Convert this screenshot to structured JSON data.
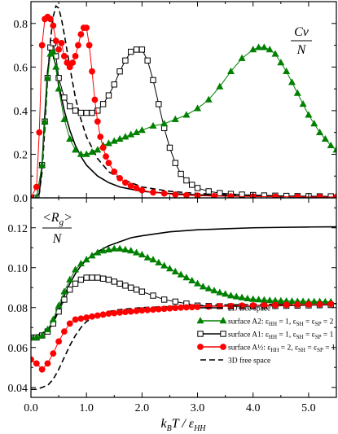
{
  "chart_data": [
    {
      "type": "line",
      "panel": "top",
      "ylabel_num": "Cv",
      "ylabel_den": "N",
      "xlim": [
        0,
        5.5
      ],
      "ylim": [
        0,
        0.9
      ],
      "yticks": [
        0,
        0.2,
        0.4,
        0.6,
        0.8
      ],
      "ytick_labels": [
        "0.0",
        "0.2",
        "0.4",
        "0.6",
        "0.8"
      ],
      "series": [
        {
          "id": "free2d",
          "style": "solid",
          "color": "#000000",
          "x": [
            0,
            0.1,
            0.15,
            0.2,
            0.25,
            0.3,
            0.35,
            0.4,
            0.45,
            0.5,
            0.6,
            0.7,
            0.8,
            0.9,
            1.0,
            1.2,
            1.4,
            1.6,
            1.8,
            2.0,
            2.5,
            3.0,
            3.5,
            4.0,
            4.5,
            5.0,
            5.5
          ],
          "y": [
            0,
            0.0,
            0.02,
            0.15,
            0.38,
            0.58,
            0.67,
            0.66,
            0.6,
            0.52,
            0.4,
            0.31,
            0.24,
            0.19,
            0.15,
            0.1,
            0.07,
            0.05,
            0.04,
            0.03,
            0.02,
            0.014,
            0.01,
            0.008,
            0.006,
            0.005,
            0.004
          ]
        },
        {
          "id": "free3d",
          "style": "dashed",
          "color": "#000000",
          "x": [
            0,
            0.1,
            0.15,
            0.2,
            0.25,
            0.3,
            0.35,
            0.4,
            0.45,
            0.5,
            0.55,
            0.6,
            0.7,
            0.8,
            0.9,
            1.0,
            1.2,
            1.4,
            1.6,
            1.8,
            2.0,
            2.5,
            3.0,
            3.5,
            4.0,
            4.5,
            5.0,
            5.5
          ],
          "y": [
            0,
            0.0,
            0.02,
            0.12,
            0.32,
            0.55,
            0.72,
            0.83,
            0.88,
            0.87,
            0.82,
            0.75,
            0.6,
            0.46,
            0.36,
            0.28,
            0.18,
            0.12,
            0.09,
            0.07,
            0.05,
            0.03,
            0.02,
            0.015,
            0.011,
            0.008,
            0.006,
            0.005
          ]
        },
        {
          "id": "A1",
          "style": "square",
          "color": "#000000",
          "x": [
            0,
            0.1,
            0.2,
            0.25,
            0.3,
            0.35,
            0.4,
            0.45,
            0.5,
            0.6,
            0.7,
            0.8,
            0.9,
            1.0,
            1.1,
            1.2,
            1.3,
            1.4,
            1.5,
            1.6,
            1.7,
            1.8,
            1.9,
            2.0,
            2.1,
            2.2,
            2.3,
            2.4,
            2.5,
            2.6,
            2.7,
            2.8,
            2.9,
            3.0,
            3.2,
            3.4,
            3.6,
            3.8,
            4.0,
            4.2,
            4.4,
            4.6,
            4.8,
            5.0,
            5.2,
            5.4
          ],
          "y": [
            0,
            0.0,
            0.15,
            0.35,
            0.55,
            0.69,
            0.71,
            0.65,
            0.55,
            0.46,
            0.42,
            0.4,
            0.39,
            0.39,
            0.39,
            0.4,
            0.43,
            0.47,
            0.52,
            0.58,
            0.63,
            0.67,
            0.68,
            0.68,
            0.63,
            0.54,
            0.43,
            0.32,
            0.23,
            0.16,
            0.11,
            0.08,
            0.06,
            0.045,
            0.03,
            0.022,
            0.018,
            0.015,
            0.013,
            0.011,
            0.01,
            0.009,
            0.008,
            0.008,
            0.007,
            0.007
          ]
        },
        {
          "id": "A2",
          "style": "triangle",
          "color": "#008000",
          "x": [
            0,
            0.1,
            0.2,
            0.25,
            0.3,
            0.35,
            0.4,
            0.45,
            0.5,
            0.6,
            0.7,
            0.8,
            0.9,
            1.0,
            1.1,
            1.2,
            1.3,
            1.4,
            1.5,
            1.6,
            1.7,
            1.8,
            1.9,
            2.0,
            2.2,
            2.4,
            2.6,
            2.8,
            3.0,
            3.2,
            3.4,
            3.6,
            3.8,
            4.0,
            4.1,
            4.2,
            4.3,
            4.4,
            4.5,
            4.6,
            4.7,
            4.8,
            4.9,
            5.0,
            5.1,
            5.2,
            5.3,
            5.4,
            5.5
          ],
          "y": [
            0,
            0.0,
            0.15,
            0.35,
            0.55,
            0.66,
            0.67,
            0.6,
            0.5,
            0.36,
            0.27,
            0.22,
            0.2,
            0.2,
            0.21,
            0.22,
            0.24,
            0.25,
            0.26,
            0.27,
            0.28,
            0.29,
            0.3,
            0.31,
            0.33,
            0.34,
            0.36,
            0.38,
            0.41,
            0.45,
            0.51,
            0.58,
            0.64,
            0.68,
            0.69,
            0.69,
            0.68,
            0.66,
            0.62,
            0.58,
            0.53,
            0.48,
            0.43,
            0.38,
            0.34,
            0.3,
            0.27,
            0.24,
            0.22
          ]
        },
        {
          "id": "Ahalf",
          "style": "circle",
          "color": "#ff0000",
          "x": [
            0,
            0.1,
            0.15,
            0.2,
            0.25,
            0.3,
            0.35,
            0.4,
            0.45,
            0.5,
            0.55,
            0.6,
            0.65,
            0.7,
            0.75,
            0.8,
            0.85,
            0.9,
            0.95,
            1.0,
            1.05,
            1.1,
            1.15,
            1.2,
            1.25,
            1.3,
            1.35,
            1.4,
            1.5,
            1.6,
            1.7,
            1.8,
            1.9,
            2.0,
            2.2,
            2.4,
            2.6,
            2.8,
            3.0,
            3.3,
            3.6,
            4.0,
            4.4,
            4.8,
            5.2,
            5.5
          ],
          "y": [
            0,
            0.05,
            0.3,
            0.7,
            0.82,
            0.83,
            0.82,
            0.79,
            0.72,
            0.68,
            0.71,
            0.65,
            0.62,
            0.6,
            0.62,
            0.65,
            0.7,
            0.75,
            0.78,
            0.78,
            0.7,
            0.58,
            0.45,
            0.35,
            0.28,
            0.23,
            0.19,
            0.16,
            0.12,
            0.09,
            0.07,
            0.055,
            0.045,
            0.035,
            0.025,
            0.02,
            0.015,
            0.012,
            0.01,
            0.008,
            0.007,
            0.006,
            0.005,
            0.005,
            0.004,
            0.004
          ]
        }
      ]
    },
    {
      "type": "line",
      "panel": "bottom",
      "ylabel_num": "<R",
      "ylabel_sub": "g",
      "ylabel_num_end": ">",
      "ylabel_den": "N",
      "xlabel_parts": [
        "k",
        "B",
        "T / ε",
        "HH"
      ],
      "xlim": [
        0,
        5.5
      ],
      "ylim": [
        0.035,
        0.135
      ],
      "yticks": [
        0.04,
        0.06,
        0.08,
        0.1,
        0.12
      ],
      "ytick_labels": [
        "0.04",
        "0.06",
        "0.08",
        "0.10",
        "0.12"
      ],
      "xticks": [
        0,
        1,
        2,
        3,
        4,
        5
      ],
      "xtick_labels": [
        "0.0",
        "1.0",
        "2.0",
        "3.0",
        "4.0",
        "5.0"
      ],
      "series": [
        {
          "id": "free2d",
          "style": "solid",
          "color": "#000000",
          "x": [
            0,
            0.1,
            0.2,
            0.3,
            0.4,
            0.5,
            0.6,
            0.7,
            0.8,
            0.9,
            1.0,
            1.2,
            1.4,
            1.6,
            1.8,
            2.0,
            2.5,
            3.0,
            3.5,
            4.0,
            4.5,
            5.0,
            5.5
          ],
          "y": [
            0.066,
            0.066,
            0.067,
            0.069,
            0.073,
            0.079,
            0.086,
            0.092,
            0.097,
            0.101,
            0.104,
            0.108,
            0.111,
            0.113,
            0.115,
            0.116,
            0.118,
            0.119,
            0.1195,
            0.12,
            0.1202,
            0.1204,
            0.1205
          ]
        },
        {
          "id": "free3d",
          "style": "dashed",
          "color": "#000000",
          "x": [
            0,
            0.1,
            0.2,
            0.3,
            0.4,
            0.5,
            0.6,
            0.7,
            0.8,
            0.9,
            1.0,
            1.2,
            1.4,
            1.6,
            1.8,
            2.0,
            2.5,
            3.0,
            3.5,
            4.0,
            4.5,
            5.0,
            5.5
          ],
          "y": [
            0.039,
            0.039,
            0.04,
            0.041,
            0.044,
            0.049,
            0.055,
            0.061,
            0.066,
            0.07,
            0.073,
            0.076,
            0.078,
            0.079,
            0.0795,
            0.08,
            0.0805,
            0.081,
            0.0813,
            0.0815,
            0.0817,
            0.0818,
            0.082
          ]
        },
        {
          "id": "A1",
          "style": "square",
          "color": "#000000",
          "x": [
            0,
            0.1,
            0.2,
            0.3,
            0.4,
            0.5,
            0.6,
            0.7,
            0.8,
            0.9,
            1.0,
            1.1,
            1.2,
            1.3,
            1.4,
            1.5,
            1.6,
            1.7,
            1.8,
            1.9,
            2.0,
            2.2,
            2.4,
            2.6,
            2.8,
            3.0,
            3.2,
            3.4,
            3.6,
            3.8,
            4.0,
            4.2,
            4.4,
            4.6,
            4.8,
            5.0,
            5.2,
            5.4
          ],
          "y": [
            0.065,
            0.065,
            0.066,
            0.068,
            0.072,
            0.078,
            0.084,
            0.089,
            0.092,
            0.094,
            0.095,
            0.095,
            0.095,
            0.0945,
            0.094,
            0.093,
            0.092,
            0.091,
            0.09,
            0.089,
            0.088,
            0.086,
            0.084,
            0.083,
            0.082,
            0.081,
            0.0808,
            0.0807,
            0.0806,
            0.0806,
            0.0806,
            0.0807,
            0.0808,
            0.0809,
            0.081,
            0.0811,
            0.0812,
            0.0813
          ]
        },
        {
          "id": "A2",
          "style": "triangle",
          "color": "#008000",
          "x": [
            0,
            0.1,
            0.2,
            0.3,
            0.4,
            0.5,
            0.6,
            0.7,
            0.8,
            0.9,
            1.0,
            1.1,
            1.2,
            1.3,
            1.4,
            1.5,
            1.6,
            1.7,
            1.8,
            1.9,
            2.0,
            2.1,
            2.2,
            2.3,
            2.4,
            2.5,
            2.6,
            2.7,
            2.8,
            2.9,
            3.0,
            3.1,
            3.2,
            3.3,
            3.4,
            3.5,
            3.6,
            3.7,
            3.8,
            3.9,
            4.0,
            4.1,
            4.2,
            4.3,
            4.4,
            4.5,
            4.6,
            4.7,
            4.8,
            4.9,
            5.0,
            5.1,
            5.2,
            5.3,
            5.4
          ],
          "y": [
            0.065,
            0.065,
            0.066,
            0.069,
            0.074,
            0.081,
            0.088,
            0.094,
            0.099,
            0.102,
            0.104,
            0.106,
            0.1075,
            0.1085,
            0.109,
            0.1095,
            0.1095,
            0.109,
            0.1085,
            0.1075,
            0.1065,
            0.105,
            0.104,
            0.1025,
            0.101,
            0.0995,
            0.098,
            0.0965,
            0.095,
            0.0935,
            0.092,
            0.0905,
            0.0895,
            0.0885,
            0.0875,
            0.0868,
            0.086,
            0.0855,
            0.085,
            0.0845,
            0.0842,
            0.084,
            0.0838,
            0.0836,
            0.0835,
            0.0834,
            0.0833,
            0.0832,
            0.0831,
            0.0831,
            0.083,
            0.083,
            0.083,
            0.0829,
            0.0829
          ]
        },
        {
          "id": "Ahalf",
          "style": "circle",
          "color": "#ff0000",
          "x": [
            0,
            0.1,
            0.2,
            0.3,
            0.4,
            0.5,
            0.6,
            0.7,
            0.8,
            0.9,
            1.0,
            1.1,
            1.2,
            1.3,
            1.4,
            1.5,
            1.6,
            1.7,
            1.8,
            1.9,
            2.0,
            2.1,
            2.2,
            2.3,
            2.4,
            2.5,
            2.6,
            2.7,
            2.8,
            2.9,
            3.0,
            3.2,
            3.4,
            3.6,
            3.8,
            4.0,
            4.2,
            4.4,
            4.6,
            4.8,
            5.0,
            5.2,
            5.4
          ],
          "y": [
            0.054,
            0.052,
            0.049,
            0.052,
            0.057,
            0.063,
            0.068,
            0.072,
            0.074,
            0.0745,
            0.075,
            0.0755,
            0.076,
            0.0765,
            0.077,
            0.0772,
            0.0775,
            0.0778,
            0.078,
            0.0783,
            0.0786,
            0.0788,
            0.079,
            0.0792,
            0.0794,
            0.0796,
            0.0798,
            0.08,
            0.0801,
            0.0802,
            0.0803,
            0.0805,
            0.0807,
            0.0808,
            0.081,
            0.0811,
            0.0812,
            0.0813,
            0.0814,
            0.0815,
            0.0816,
            0.0817,
            0.0818
          ]
        }
      ],
      "legend": [
        {
          "id": "free2d",
          "label": "2D free space"
        },
        {
          "id": "A2",
          "label": "surface A2: ε",
          "sub1": "HH",
          "mid1": " = 1, ε",
          "sub2": "SH",
          "mid2": " = ε",
          "sub3": "SP",
          "end": " = 2"
        },
        {
          "id": "A1",
          "label": "surface A1: ε",
          "sub1": "HH",
          "mid1": " = 1, ε",
          "sub2": "SH",
          "mid2": " = ε",
          "sub3": "SP",
          "end": " = 1"
        },
        {
          "id": "Ahalf",
          "label": "surface A½: ε",
          "sub1": "HH",
          "mid1": " = 2, ε",
          "sub2": "SH",
          "mid2": " = ε",
          "sub3": "SP",
          "end": " = 1"
        },
        {
          "id": "free3d",
          "label": "3D free space"
        }
      ]
    }
  ]
}
